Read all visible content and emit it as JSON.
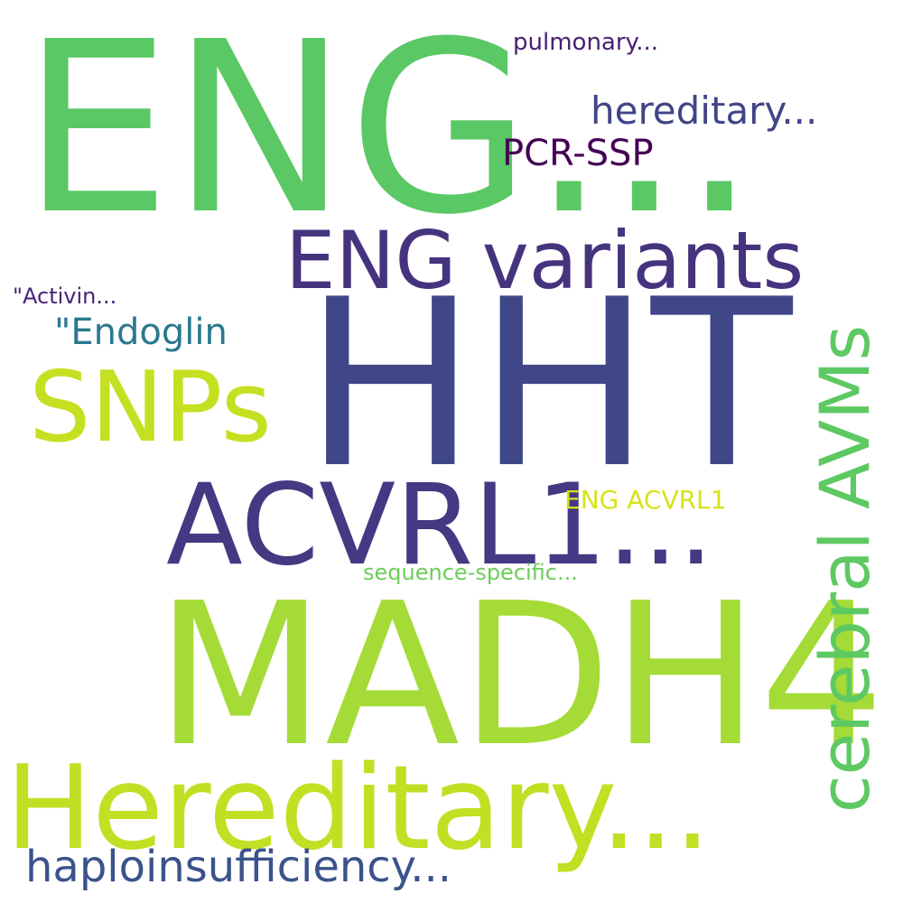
{
  "words": {
    "eng_ellipsis": {
      "text": "ENG...",
      "color": "#5ac864"
    },
    "hht": {
      "text": "HHT",
      "color": "#3f4788"
    },
    "madh4": {
      "text": "MADH4",
      "color": "#a5db36"
    },
    "hereditary_big": {
      "text": "Hereditary...",
      "color": "#c2df23"
    },
    "acvrl1_ellipsis": {
      "text": "ACVRL1...",
      "color": "#443983"
    },
    "eng_variants": {
      "text": "ENG variants",
      "color": "#46337e"
    },
    "snps": {
      "text": "SNPs",
      "color": "#c5e021"
    },
    "cerebral_avms": {
      "text": "cerebral AVMs",
      "color": "#5ec962"
    },
    "haploinsufficiency": {
      "text": "haploinsufficiency...",
      "color": "#3b528b"
    },
    "pcr_ssp": {
      "text": "PCR-SSP",
      "color": "#440154"
    },
    "hereditary_small": {
      "text": "hereditary...",
      "color": "#414487"
    },
    "endoglin": {
      "text": "\"Endoglin",
      "color": "#2a788e"
    },
    "eng_acvrl1": {
      "text": "ENG ACVRL1",
      "color": "#d8e219"
    },
    "sequence_specific": {
      "text": "sequence-specific...",
      "color": "#6ccd5a"
    },
    "pulmonary": {
      "text": "pulmonary...",
      "color": "#481f70"
    },
    "activin": {
      "text": "\"Activin...",
      "color": "#482475"
    }
  }
}
